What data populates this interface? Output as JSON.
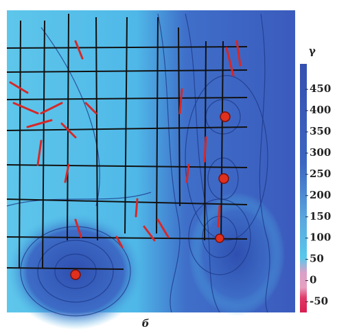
{
  "colorbar": {
    "title": "γ",
    "ticks": [
      450,
      400,
      350,
      300,
      250,
      200,
      150,
      100,
      50,
      0,
      -50
    ],
    "lim": [
      -75,
      510
    ]
  },
  "caption": "б"
}
